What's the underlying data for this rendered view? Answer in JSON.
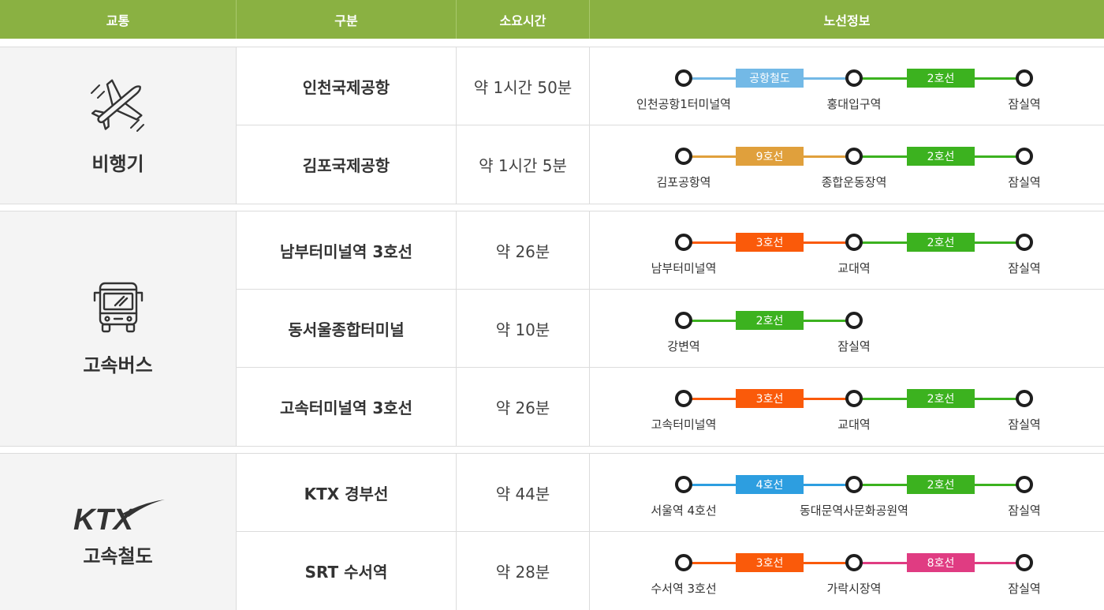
{
  "header": {
    "col_transport": "교통",
    "col_category": "구분",
    "col_duration": "소요시간",
    "col_route": "노선정보"
  },
  "groups": [
    {
      "label": "비행기",
      "icon": "airplane-icon",
      "rows": [
        {
          "name": "인천국제공항",
          "duration": "약 1시간 50분",
          "lines": [
            {
              "label": "공항철도",
              "color": "#73b9e6"
            },
            {
              "label": "2호선",
              "color": "#3cb21f"
            }
          ],
          "stations": [
            "인천공항1터미널역",
            "홍대입구역",
            "잠실역"
          ]
        },
        {
          "name": "김포국제공항",
          "duration": "약 1시간 5분",
          "lines": [
            {
              "label": "9호선",
              "color": "#e0a03c"
            },
            {
              "label": "2호선",
              "color": "#3cb21f"
            }
          ],
          "stations": [
            "김포공항역",
            "종합운동장역",
            "잠실역"
          ]
        }
      ]
    },
    {
      "label": "고속버스",
      "icon": "bus-icon",
      "rows": [
        {
          "name": "남부터미널역 3호선",
          "duration": "약 26분",
          "lines": [
            {
              "label": "3호선",
              "color": "#fa5a0a"
            },
            {
              "label": "2호선",
              "color": "#3cb21f"
            }
          ],
          "stations": [
            "남부터미널역",
            "교대역",
            "잠실역"
          ]
        },
        {
          "name": "동서울종합터미널",
          "duration": "약 10분",
          "lines": [
            {
              "label": "2호선",
              "color": "#3cb21f"
            }
          ],
          "stations": [
            "강변역",
            "잠실역"
          ]
        },
        {
          "name": "고속터미널역 3호선",
          "duration": "약 26분",
          "lines": [
            {
              "label": "3호선",
              "color": "#fa5a0a"
            },
            {
              "label": "2호선",
              "color": "#3cb21f"
            }
          ],
          "stations": [
            "고속터미널역",
            "교대역",
            "잠실역"
          ]
        }
      ]
    },
    {
      "label": "고속철도",
      "icon": "ktx-logo-icon",
      "logo_text": "KTX",
      "rows": [
        {
          "name": "KTX 경부선",
          "duration": "약 44분",
          "lines": [
            {
              "label": "4호선",
              "color": "#2d9ee0"
            },
            {
              "label": "2호선",
              "color": "#3cb21f"
            }
          ],
          "stations": [
            "서울역 4호선",
            "동대문역사문화공원역",
            "잠실역"
          ]
        },
        {
          "name": "SRT 수서역",
          "duration": "약 28분",
          "lines": [
            {
              "label": "3호선",
              "color": "#fa5a0a"
            },
            {
              "label": "8호선",
              "color": "#e03c82"
            }
          ],
          "stations": [
            "수서역 3호선",
            "가락시장역",
            "잠실역"
          ]
        }
      ]
    }
  ]
}
